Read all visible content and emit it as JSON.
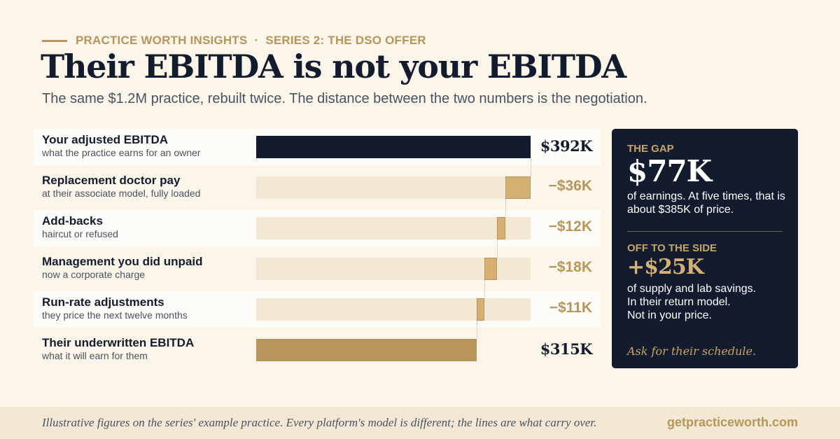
{
  "header": {
    "brand": "PRACTICE WORTH INSIGHTS",
    "separator": "·",
    "series": "SERIES 2: THE DSO OFFER",
    "title": "Their EBITDA is not your EBITDA",
    "subtitle": "The same $1.2M practice, rebuilt twice. The distance between the two numbers is the negotiation."
  },
  "chart_data": {
    "type": "bar",
    "subtype": "waterfall",
    "units": "thousands of USD",
    "rows": [
      {
        "label": "Your adjusted EBITDA",
        "sublabel": "what the practice earns for an owner",
        "value": 392,
        "kind": "total",
        "display": "$392K"
      },
      {
        "label": "Replacement doctor pay",
        "sublabel": "at their associate model, fully loaded",
        "value": -36,
        "kind": "step",
        "display": "−$36K"
      },
      {
        "label": "Add-backs",
        "sublabel": "haircut or refused",
        "value": -12,
        "kind": "step",
        "display": "−$12K"
      },
      {
        "label": "Management you did unpaid",
        "sublabel": "now a corporate charge",
        "value": -18,
        "kind": "step",
        "display": "−$18K"
      },
      {
        "label": "Run-rate adjustments",
        "sublabel": "they price the next twelve months",
        "value": -11,
        "kind": "step",
        "display": "−$11K"
      },
      {
        "label": "Their underwritten EBITDA",
        "sublabel": "what it will earn for them",
        "value": 315,
        "kind": "total",
        "display": "$315K"
      }
    ]
  },
  "panel": {
    "gap_kicker": "THE GAP",
    "gap_value": "$77K",
    "gap_note": "of earnings. At five times, that is about $385K of price.",
    "side_kicker": "OFF TO THE SIDE",
    "side_value": "+$25K",
    "side_note_1": "of supply and lab savings.",
    "side_note_2": "In their return model.",
    "side_note_3": "Not in your price.",
    "cta": "Ask for their schedule."
  },
  "footer": {
    "disclaimer": "Illustrative figures on the series' example practice. Every platform's model is different; the lines are what carry over.",
    "url": "getpracticeworth.com"
  },
  "colors": {
    "navy": "#131c2e",
    "gold": "#b8955a",
    "gold_light": "#d4b073",
    "track": "#f3e8d4",
    "background": "#fbf5ea"
  }
}
